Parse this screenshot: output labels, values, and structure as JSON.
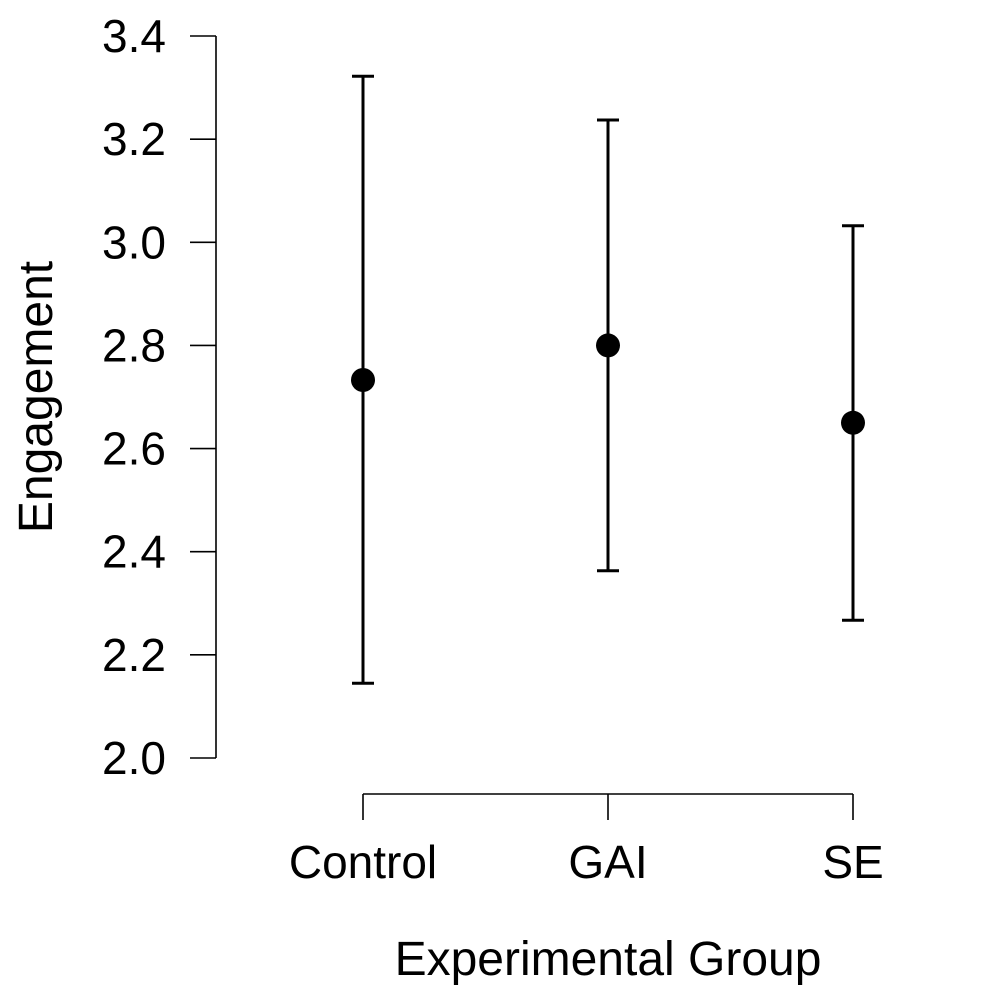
{
  "chart_data": {
    "type": "scatter",
    "title": "",
    "xlabel": "Experimental Group",
    "ylabel": "Engagement",
    "categories": [
      "Control",
      "GAI",
      "SE"
    ],
    "series": [
      {
        "name": "Engagement",
        "values": [
          2.733,
          2.8,
          2.65
        ],
        "lower": [
          2.145,
          2.363,
          2.267
        ],
        "upper": [
          3.322,
          3.237,
          3.032
        ]
      }
    ],
    "ylim": [
      2.0,
      3.4
    ],
    "yticks": [
      "2.0",
      "2.2",
      "2.4",
      "2.6",
      "2.8",
      "3.0",
      "3.2",
      "3.4"
    ],
    "grid": false,
    "legend": "none"
  }
}
